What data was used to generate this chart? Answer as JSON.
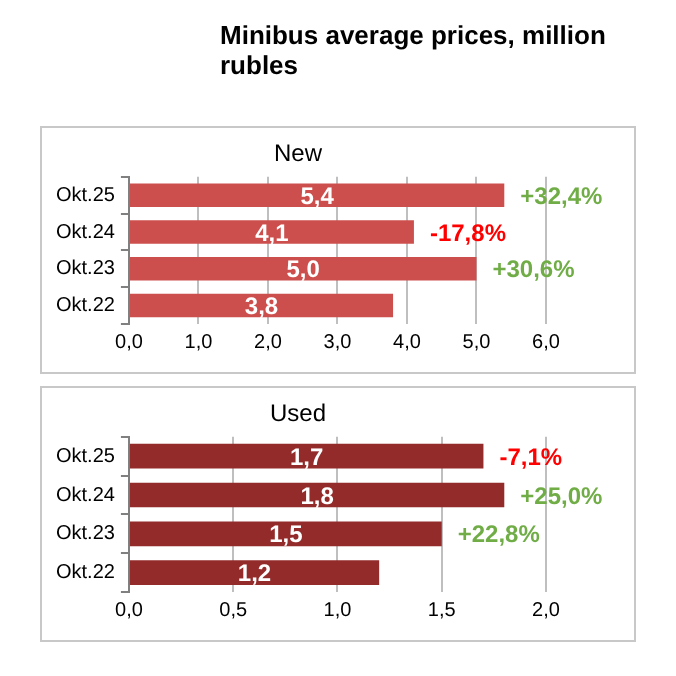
{
  "chart_data": [
    {
      "type": "bar",
      "orientation": "horizontal",
      "title": "Minibus average prices, million rubles",
      "subtitle": "New",
      "categories": [
        "Okt.25",
        "Okt.24",
        "Okt.23",
        "Okt.22"
      ],
      "values": [
        5.4,
        4.1,
        5.0,
        3.8
      ],
      "value_labels": [
        "5,4",
        "4,1",
        "5,0",
        "3,8"
      ],
      "color": "#cd4f4d",
      "xlim": [
        0,
        6
      ],
      "xticks": [
        {
          "value": 0,
          "label": "0,0"
        },
        {
          "value": 1,
          "label": "1,0"
        },
        {
          "value": 2,
          "label": "2,0"
        },
        {
          "value": 3,
          "label": "3,0"
        },
        {
          "value": 4,
          "label": "4,0"
        },
        {
          "value": 5,
          "label": "5,0"
        },
        {
          "value": 6,
          "label": "6,0"
        }
      ],
      "grid": "x",
      "legend": false,
      "annotations": [
        {
          "text": "+32,4%",
          "x": 5.4,
          "y": "Okt.25"
        },
        {
          "text": "-17,8%",
          "x": 4.1,
          "y": "Okt.24"
        },
        {
          "text": "+30,6%",
          "x": 5.0,
          "y": "Okt.23"
        }
      ]
    },
    {
      "type": "bar",
      "orientation": "horizontal",
      "title": "Used",
      "categories": [
        "Okt.25",
        "Okt.24",
        "Okt.23",
        "Okt.22"
      ],
      "values": [
        1.7,
        1.8,
        1.5,
        1.2
      ],
      "value_labels": [
        "1,7",
        "1,8",
        "1,5",
        "1,2"
      ],
      "color": "#922b2a",
      "xlim": [
        0,
        2
      ],
      "xticks": [
        {
          "value": 0,
          "label": "0,0"
        },
        {
          "value": 0.5,
          "label": "0,5"
        },
        {
          "value": 1,
          "label": "1,0"
        },
        {
          "value": 1.5,
          "label": "1,5"
        },
        {
          "value": 2,
          "label": "2,0"
        }
      ],
      "grid": "x",
      "legend": false,
      "annotations": [
        {
          "text": "-7,1%",
          "x": 1.7,
          "y": "Okt.25"
        },
        {
          "text": "+25,0%",
          "x": 1.8,
          "y": "Okt.24"
        },
        {
          "text": "+22,8%",
          "x": 1.5,
          "y": "Okt.23"
        }
      ]
    }
  ]
}
